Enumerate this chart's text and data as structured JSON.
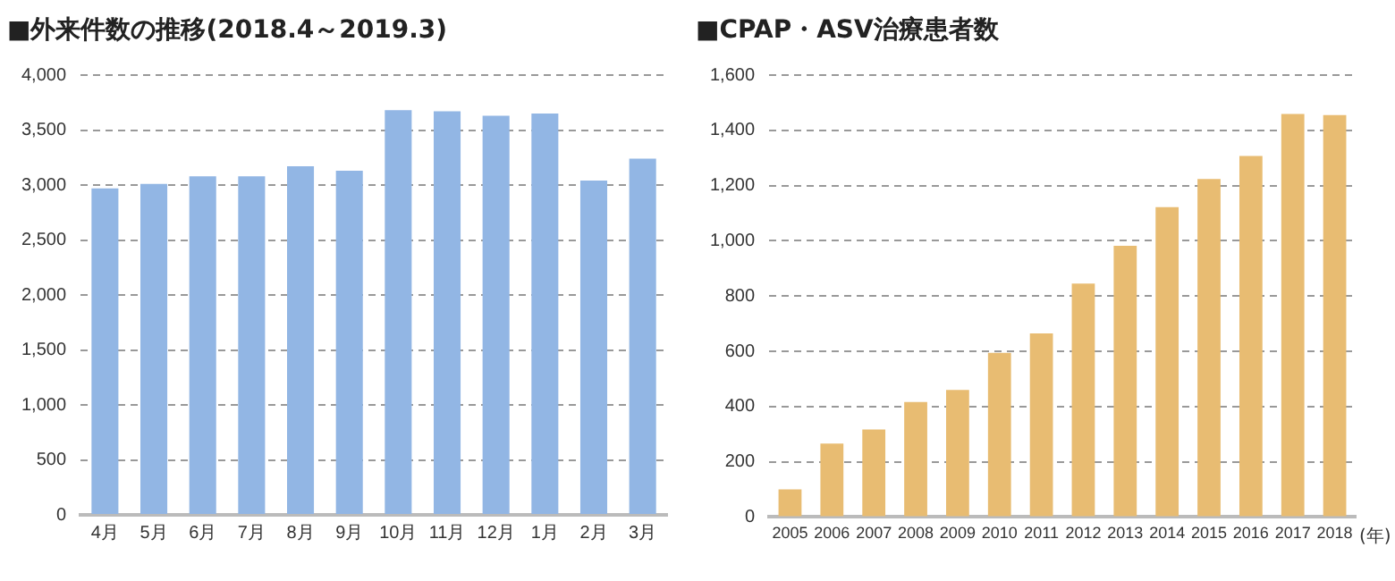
{
  "chart_data": [
    {
      "type": "bar",
      "title": "■外来件数の推移(2018.4～2019.3)",
      "categories": [
        "4月",
        "5月",
        "6月",
        "7月",
        "8月",
        "9月",
        "10月",
        "11月",
        "12月",
        "1月",
        "2月",
        "3月"
      ],
      "values": [
        2970,
        3010,
        3080,
        3080,
        3170,
        3130,
        3680,
        3670,
        3630,
        3650,
        3040,
        3240
      ],
      "color": "#92b6e4",
      "ylim": [
        0,
        4000
      ],
      "yticks": [
        0,
        500,
        {
          "value": 1000,
          "label": "1,000"
        },
        {
          "value": 1500,
          "label": "1,500"
        },
        {
          "value": 2000,
          "label": "2,000"
        },
        {
          "value": 2500,
          "label": "2,500"
        },
        {
          "value": 3000,
          "label": "3,000"
        },
        {
          "value": 3500,
          "label": "3,500"
        },
        {
          "value": 4000,
          "label": "4,000"
        }
      ],
      "grid": "y",
      "legend": false
    },
    {
      "type": "bar",
      "title": "■CPAP・ASV治療患者数",
      "xlabel": "(年)",
      "categories": [
        "2005",
        "2006",
        "2007",
        "2008",
        "2009",
        "2010",
        "2011",
        "2012",
        "2013",
        "2014",
        "2015",
        "2016",
        "2017",
        "2018"
      ],
      "values": [
        100,
        266,
        317,
        416,
        460,
        594,
        665,
        845,
        982,
        1122,
        1224,
        1307,
        1459,
        1455
      ],
      "color": "#e8bc72",
      "ylim": [
        0,
        1600
      ],
      "yticks": [
        0,
        200,
        400,
        600,
        800,
        {
          "value": 1000,
          "label": "1,000"
        },
        {
          "value": 1200,
          "label": "1,200"
        },
        {
          "value": 1400,
          "label": "1,400"
        },
        {
          "value": 1600,
          "label": "1,600"
        }
      ],
      "grid": "y",
      "legend": false
    }
  ]
}
